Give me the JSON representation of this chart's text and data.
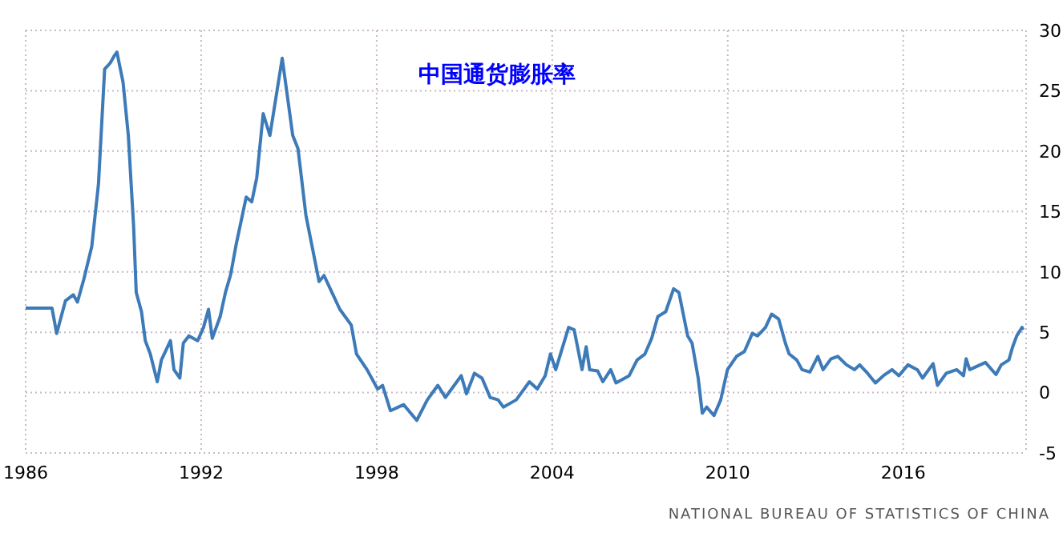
{
  "chart_data": {
    "type": "line",
    "title": "中国通货膨胀率",
    "annotations": [
      "NATIONAL BUREAU OF STATISTICS OF CHINA"
    ],
    "x": [
      1986.0,
      1986.9,
      1987.06,
      1987.36,
      1987.63,
      1987.77,
      1987.99,
      1988.26,
      1988.49,
      1988.7,
      1988.89,
      1989.03,
      1989.12,
      1989.33,
      1989.51,
      1989.69,
      1989.78,
      1989.96,
      1990.09,
      1990.26,
      1990.5,
      1990.64,
      1990.95,
      1991.07,
      1991.27,
      1991.39,
      1991.58,
      1991.88,
      1992.08,
      1992.25,
      1992.38,
      1992.65,
      1992.83,
      1993.01,
      1993.19,
      1993.54,
      1993.73,
      1993.9,
      1994.12,
      1994.35,
      1994.77,
      1995.13,
      1995.31,
      1995.58,
      1996.03,
      1996.2,
      1996.47,
      1996.74,
      1997.13,
      1997.31,
      1997.67,
      1998.03,
      1998.2,
      1998.47,
      1998.92,
      1999.37,
      1999.73,
      2000.09,
      2000.35,
      2000.62,
      2000.89,
      2001.07,
      2001.34,
      2001.6,
      2001.88,
      2002.15,
      2002.33,
      2002.77,
      2003.22,
      2003.49,
      2003.76,
      2003.94,
      2004.12,
      2004.56,
      2004.75,
      2005.02,
      2005.16,
      2005.28,
      2005.55,
      2005.73,
      2006.0,
      2006.18,
      2006.63,
      2006.9,
      2007.17,
      2007.4,
      2007.61,
      2007.88,
      2008.15,
      2008.33,
      2008.63,
      2008.78,
      2008.99,
      2009.13,
      2009.28,
      2009.53,
      2009.76,
      2009.99,
      2010.3,
      2010.57,
      2010.84,
      2011.02,
      2011.29,
      2011.5,
      2011.74,
      2011.97,
      2012.1,
      2012.36,
      2012.54,
      2012.81,
      2013.08,
      2013.26,
      2013.53,
      2013.76,
      2014.06,
      2014.33,
      2014.51,
      2014.78,
      2015.05,
      2015.32,
      2015.62,
      2015.85,
      2016.16,
      2016.48,
      2016.66,
      2017.02,
      2017.17,
      2017.47,
      2017.83,
      2018.06,
      2018.15,
      2018.27,
      2018.81,
      2019.17,
      2019.35,
      2019.61,
      2019.74,
      2019.88,
      2020.06,
      2020.1
    ],
    "series": [
      {
        "color": "#3d7ab8",
        "values": [
          7.0,
          7.0,
          4.9,
          7.6,
          8.1,
          7.5,
          9.4,
          12.1,
          17.3,
          26.8,
          27.3,
          27.9,
          28.2,
          25.7,
          21.3,
          13.8,
          8.3,
          6.7,
          4.3,
          3.2,
          0.9,
          2.7,
          4.3,
          1.9,
          1.2,
          4.1,
          4.7,
          4.3,
          5.4,
          6.9,
          4.5,
          6.3,
          8.3,
          9.8,
          12.2,
          16.2,
          15.8,
          17.8,
          23.1,
          21.3,
          27.7,
          21.3,
          20.2,
          14.7,
          9.2,
          9.7,
          8.3,
          6.9,
          5.6,
          3.2,
          1.9,
          0.3,
          0.6,
          -1.5,
          -1.0,
          -2.3,
          -0.6,
          0.6,
          -0.4,
          0.5,
          1.4,
          -0.1,
          1.6,
          1.2,
          -0.4,
          -0.6,
          -1.2,
          -0.6,
          0.9,
          0.3,
          1.4,
          3.2,
          1.9,
          5.4,
          5.2,
          1.9,
          3.8,
          1.9,
          1.8,
          0.9,
          1.9,
          0.8,
          1.4,
          2.7,
          3.2,
          4.5,
          6.3,
          6.7,
          8.6,
          8.3,
          4.7,
          4.1,
          1.2,
          -1.7,
          -1.2,
          -1.9,
          -0.6,
          1.9,
          3.0,
          3.4,
          4.9,
          4.7,
          5.4,
          6.5,
          6.1,
          4.1,
          3.2,
          2.7,
          1.9,
          1.7,
          3.0,
          1.9,
          2.8,
          3.0,
          2.3,
          1.9,
          2.3,
          1.6,
          0.8,
          1.4,
          1.9,
          1.4,
          2.3,
          1.9,
          1.2,
          2.4,
          0.6,
          1.6,
          1.9,
          1.4,
          2.8,
          1.9,
          2.5,
          1.5,
          2.3,
          2.7,
          3.8,
          4.7,
          5.4,
          5.2
        ]
      }
    ],
    "xlim": [
      1986,
      2020.2
    ],
    "xticks": [
      1986,
      1992,
      1998,
      2004,
      2010,
      2016
    ],
    "ylim": [
      -5,
      30
    ],
    "yticks": [
      -5,
      0,
      5,
      10,
      15,
      20,
      25,
      30
    ],
    "grid": true,
    "marker": "none",
    "line_style": "solid"
  }
}
